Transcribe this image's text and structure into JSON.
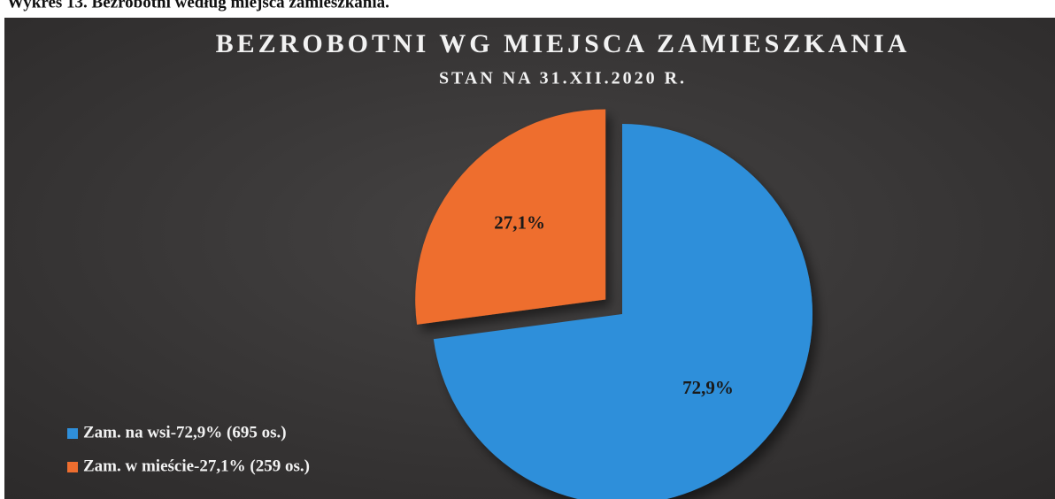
{
  "caption": "Wykres 13. Bezrobotni według miejsca zamieszkania.",
  "chart_data": {
    "type": "pie",
    "title": "BEZROBOTNI WG MIEJSCA ZAMIESZKANIA",
    "subtitle": "STAN NA 31.XII.2020 R.",
    "series": [
      {
        "name": "Zam. na wsi-72,9% (695 os.)",
        "color": "#2f8fda",
        "values": [
          72.9
        ],
        "value_labels": [
          "72,9%"
        ]
      },
      {
        "name": "Zam. w mieście-27,1% (259 os.)",
        "color": "#ee6e2f",
        "values": [
          27.1
        ],
        "value_labels": [
          "27,1%"
        ]
      }
    ],
    "legend": "bottom-left"
  }
}
